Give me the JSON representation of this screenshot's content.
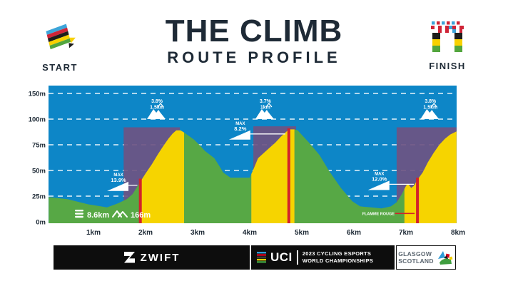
{
  "header": {
    "title": "THE CLIMB",
    "subtitle": "ROUTE PROFILE",
    "start_label": "START",
    "finish_label": "FINISH"
  },
  "chart_data": {
    "type": "area",
    "title": "THE CLIMB — ROUTE PROFILE",
    "x_unit": "km",
    "y_unit": "m",
    "x_ticks": [
      {
        "km": 1,
        "label": "1km"
      },
      {
        "km": 2,
        "label": "2km"
      },
      {
        "km": 3,
        "label": "3km"
      },
      {
        "km": 4,
        "label": "4km"
      },
      {
        "km": 5,
        "label": "5km"
      },
      {
        "km": 6,
        "label": "6km"
      },
      {
        "km": 7,
        "label": "7km"
      },
      {
        "km": 8,
        "label": "8km"
      }
    ],
    "y_gridlines": [
      {
        "m": 150,
        "label": "150m"
      },
      {
        "m": 100,
        "label": "100m"
      },
      {
        "m": 75,
        "label": "75m"
      },
      {
        "m": 50,
        "label": "50m"
      },
      {
        "m": 25,
        "label": "25m"
      },
      {
        "m": 0,
        "label": "0m"
      }
    ],
    "profile": [
      [
        0.14,
        24
      ],
      [
        0.5,
        22
      ],
      [
        0.9,
        17
      ],
      [
        1.26,
        14
      ],
      [
        1.47,
        18
      ],
      [
        1.64,
        22
      ],
      [
        1.75,
        27
      ],
      [
        1.9,
        39
      ],
      [
        2.0,
        47
      ],
      [
        2.12,
        56
      ],
      [
        2.24,
        66
      ],
      [
        2.33,
        73
      ],
      [
        2.44,
        81
      ],
      [
        2.52,
        86
      ],
      [
        2.59,
        89
      ],
      [
        2.67,
        89
      ],
      [
        2.74,
        87
      ],
      [
        2.93,
        80
      ],
      [
        3.05,
        74
      ],
      [
        3.14,
        69
      ],
      [
        3.32,
        62
      ],
      [
        3.42,
        54
      ],
      [
        3.49,
        48
      ],
      [
        3.63,
        43
      ],
      [
        4.0,
        43
      ],
      [
        4.07,
        51
      ],
      [
        4.16,
        62
      ],
      [
        4.27,
        67
      ],
      [
        4.38,
        72
      ],
      [
        4.49,
        77
      ],
      [
        4.6,
        83
      ],
      [
        4.71,
        88
      ],
      [
        4.75,
        90
      ],
      [
        4.86,
        90
      ],
      [
        4.92,
        89
      ],
      [
        5.14,
        77
      ],
      [
        5.34,
        65
      ],
      [
        5.53,
        49
      ],
      [
        5.75,
        33
      ],
      [
        5.97,
        20
      ],
      [
        6.12,
        15
      ],
      [
        6.33,
        14
      ],
      [
        6.53,
        13
      ],
      [
        6.71,
        15
      ],
      [
        6.82,
        19
      ],
      [
        6.92,
        27
      ],
      [
        7.0,
        35
      ],
      [
        7.04,
        37
      ],
      [
        7.1,
        33
      ],
      [
        7.15,
        35
      ],
      [
        7.22,
        41
      ],
      [
        7.32,
        48
      ],
      [
        7.42,
        58
      ],
      [
        7.53,
        67
      ],
      [
        7.64,
        75
      ],
      [
        7.75,
        81
      ],
      [
        7.85,
        85
      ],
      [
        7.97,
        88
      ]
    ],
    "segments": [
      {
        "from": 0.14,
        "to": 1.9,
        "kind": "flat"
      },
      {
        "from": 1.9,
        "to": 2.74,
        "kind": "climb"
      },
      {
        "from": 2.74,
        "to": 4.03,
        "kind": "flat"
      },
      {
        "from": 4.03,
        "to": 4.86,
        "kind": "climb"
      },
      {
        "from": 4.86,
        "to": 6.97,
        "kind": "flat"
      },
      {
        "from": 6.97,
        "to": 7.97,
        "kind": "climb"
      }
    ],
    "climb_zones": [
      {
        "from": 1.58,
        "to": 2.66,
        "top_m": 92
      },
      {
        "from": 4.07,
        "to": 4.89,
        "top_m": 93
      },
      {
        "from": 6.82,
        "to": 7.97,
        "top_m": 92
      }
    ],
    "steep_markers": [
      {
        "km": 1.9,
        "top_m": 42
      },
      {
        "km": 4.75,
        "top_m": 91
      },
      {
        "km": 7.22,
        "top_m": 43
      }
    ],
    "grade_badges": [
      {
        "pct": "3.8%",
        "len": "1.5km",
        "km": 2.22
      },
      {
        "pct": "3.7%",
        "len": "1km",
        "km": 4.3
      },
      {
        "pct": "3.8%",
        "len": "1.5km",
        "km": 7.47
      }
    ],
    "max_badges": [
      {
        "label": "MAX",
        "value": "13.9%",
        "km": 1.48,
        "base_m": 30,
        "to_km": 1.87
      },
      {
        "label": "MAX",
        "value": "8.2%",
        "km": 3.82,
        "base_m": 80,
        "to_km": 4.71
      },
      {
        "label": "MAX",
        "value": "12.0%",
        "km": 6.49,
        "base_m": 31,
        "to_km": 7.18
      }
    ],
    "flamme_rouge": {
      "label": "FLAMME ROUGE",
      "km": 6.16,
      "to_km": 7.22,
      "m": 6
    },
    "stats": {
      "distance": "8.6km",
      "elevation": "166m"
    },
    "colors": {
      "sky": "#0d86c7",
      "flat": "#57a845",
      "climb": "#f6d400",
      "zone": "#6e5482",
      "marker": "#d3222a",
      "grid": "#ffffff",
      "axis_text": "#1e2a36",
      "annotation": "#ffffff"
    }
  },
  "footer": {
    "zwift_label": "ZWIFT",
    "uci_label": "UCI",
    "champ_line1": "2023 CYCLING ESPORTS",
    "champ_line2": "WORLD CHAMPIONSHIPS",
    "host_line1": "GLASGOW",
    "host_line2": "SCOTLAND"
  }
}
